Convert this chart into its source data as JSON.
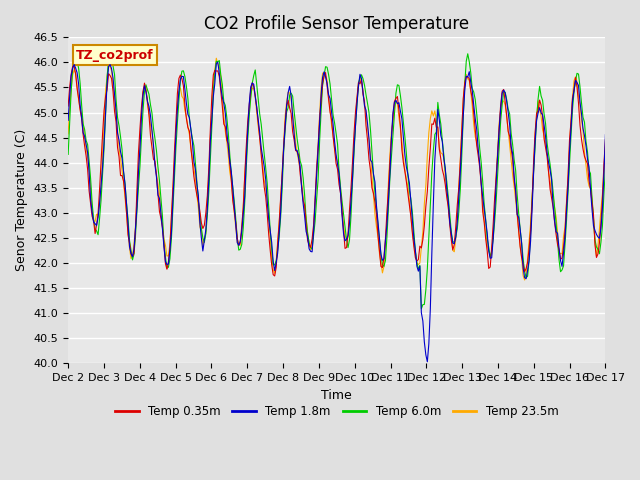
{
  "title": "CO2 Profile Sensor Temperature",
  "xlabel": "Time",
  "ylabel": "Senor Temperature (C)",
  "ylim": [
    40.0,
    46.5
  ],
  "x_tick_labels": [
    "Dec 2",
    "Dec 3",
    "Dec 4",
    "Dec 5",
    "Dec 6",
    "Dec 7",
    "Dec 8",
    "Dec 9",
    "Dec 10",
    "Dec 11",
    "Dec 12",
    "Dec 13",
    "Dec 14",
    "Dec 15",
    "Dec 16",
    "Dec 17"
  ],
  "annotation_text": "TZ_co2prof",
  "annotation_color": "#cc0000",
  "annotation_bg": "#ffffcc",
  "annotation_border": "#cc8800",
  "legend_labels": [
    "Temp 0.35m",
    "Temp 1.8m",
    "Temp 6.0m",
    "Temp 23.5m"
  ],
  "line_colors": [
    "#dd0000",
    "#0000cc",
    "#00cc00",
    "#ffaa00"
  ],
  "bg_color": "#e0e0e0",
  "plot_bg": "#e8e8e8",
  "grid_color": "#ffffff",
  "title_fontsize": 12,
  "axis_fontsize": 9,
  "tick_fontsize": 8
}
